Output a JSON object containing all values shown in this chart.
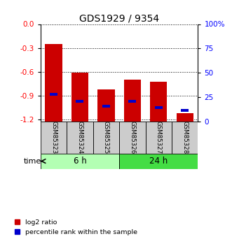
{
  "title": "GDS1929 / 9354",
  "samples": [
    "GSM85323",
    "GSM85324",
    "GSM85325",
    "GSM85326",
    "GSM85327",
    "GSM85328"
  ],
  "log2_ratios": [
    -0.25,
    -0.61,
    -0.82,
    -0.7,
    -0.72,
    -1.12
  ],
  "bar_bottom": -1.22,
  "percentile_values": [
    -0.88,
    -0.97,
    -1.03,
    -0.97,
    -1.05,
    -1.08
  ],
  "groups": [
    {
      "label": "6 h",
      "start": 0,
      "end": 3,
      "color": "#b3ffb3"
    },
    {
      "label": "24 h",
      "start": 3,
      "end": 6,
      "color": "#44dd44"
    }
  ],
  "ylim_left": [
    -1.22,
    0.0
  ],
  "ylim_right": [
    0,
    100
  ],
  "left_ticks": [
    0.0,
    -0.3,
    -0.6,
    -0.9,
    -1.2
  ],
  "right_ticks": [
    0,
    25,
    50,
    75,
    100
  ],
  "bar_color": "#cc0000",
  "blue_color": "#0000cc",
  "background_color": "#ffffff",
  "sample_bg_color": "#cccccc",
  "time_label": "time",
  "legend_red_label": "log2 ratio",
  "legend_blue_label": "percentile rank within the sample"
}
